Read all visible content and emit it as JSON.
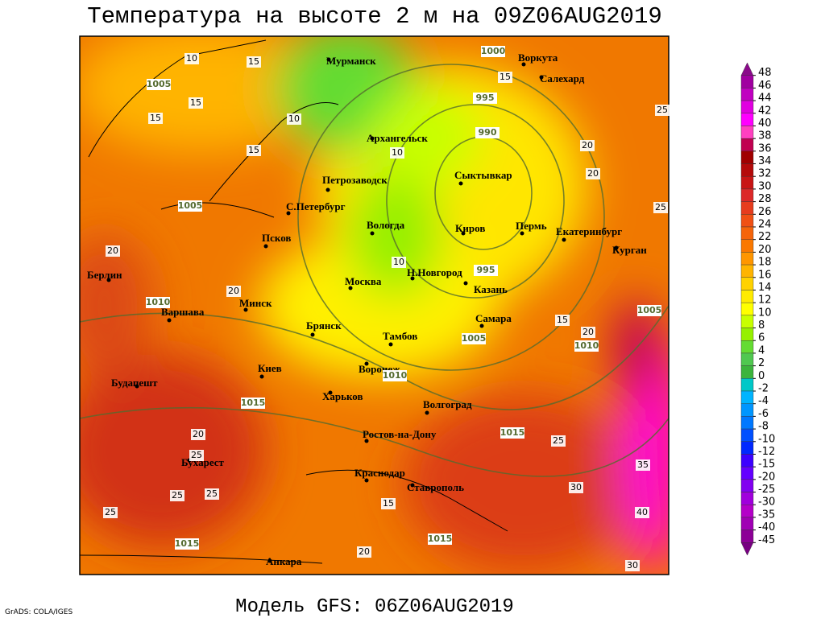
{
  "map": {
    "title": "Температура на высоте 2 м на 09Z06AUG2019",
    "subtitle": "Модель GFS: 06Z06AUG2019",
    "credit": "GrADS: COLA/IGES",
    "cities": [
      "Мурманск",
      "Воркута",
      "Салехард",
      "Архангельск",
      "Сыктывкар",
      "Петрозаводск",
      "С.Петербург",
      "Вологда",
      "Киров",
      "Пермь",
      "Екатеринбург",
      "Курган",
      "Псков",
      "Берлин",
      "Москва",
      "Н.Новгород",
      "Казань",
      "Варшава",
      "Минск",
      "Самара",
      "Брянск",
      "Тамбов",
      "Киев",
      "Воронеж",
      "Будапешт",
      "Харьков",
      "Волгоград",
      "Ростов-на-Дону",
      "Бухарест",
      "Краснодар",
      "Ставрополь",
      "Анкара"
    ],
    "isobar_labels": [
      1000,
      995,
      990,
      1005,
      1005,
      1010,
      1015,
      1010,
      1005,
      1015,
      1015,
      1015,
      1005,
      995,
      1010
    ],
    "isotherm_labels": [
      10,
      15,
      15,
      15,
      15,
      10,
      10,
      15,
      20,
      20,
      25,
      25,
      20,
      20,
      10,
      20,
      15,
      20,
      25,
      25,
      25,
      25,
      30,
      35,
      40,
      30,
      20,
      15,
      25
    ],
    "colorbar": {
      "levels": [
        48,
        46,
        44,
        42,
        40,
        38,
        36,
        34,
        32,
        30,
        28,
        26,
        24,
        22,
        20,
        18,
        16,
        14,
        12,
        10,
        8,
        6,
        4,
        2,
        0,
        -2,
        -4,
        -6,
        -8,
        -10,
        -12,
        -15,
        -20,
        -25,
        -30,
        -35,
        -40,
        -45
      ],
      "colors": [
        "#8a0a8a",
        "#a000a0",
        "#c000c0",
        "#e000e0",
        "#ff00ff",
        "#ff40c0",
        "#c00050",
        "#a00000",
        "#b40a0a",
        "#c81414",
        "#dc2828",
        "#e63c1e",
        "#f05014",
        "#f5640a",
        "#fa7800",
        "#ff9600",
        "#ffb400",
        "#ffd200",
        "#ffeb00",
        "#ffff00",
        "#c8ff00",
        "#96f000",
        "#64dc32",
        "#50c850",
        "#3cb43c",
        "#00c8c8",
        "#00b4ff",
        "#0096ff",
        "#0078ff",
        "#0050ff",
        "#0028ff",
        "#3c00ff",
        "#6400ff",
        "#8200f0",
        "#a000dc",
        "#b400c8",
        "#a000b4",
        "#8c0096",
        "#780082"
      ]
    }
  }
}
